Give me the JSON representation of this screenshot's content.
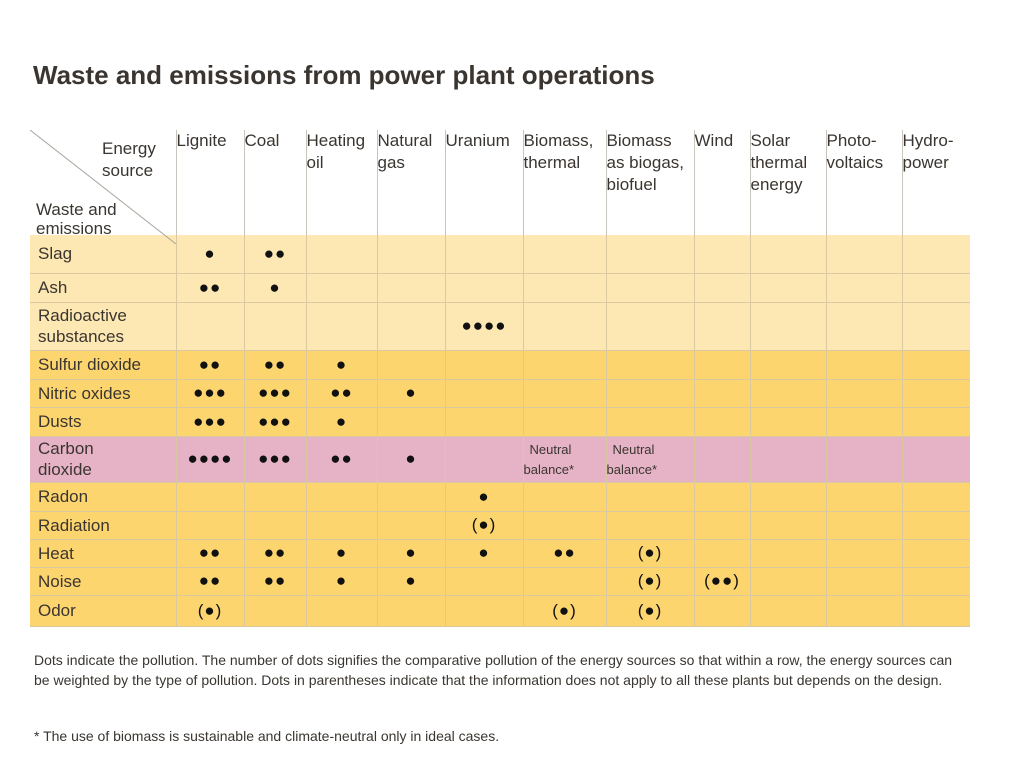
{
  "title": "Waste and emissions from power plant operations",
  "corner": {
    "energy_source": "Energy\nsource",
    "waste_and_emissions": "Waste and\nemissions"
  },
  "columns": [
    "Lignite",
    "Coal",
    "Heating\noil",
    "Natural\ngas",
    "Uranium",
    "Biomass,\nthermal",
    "Biomass\nas biogas,\nbiofuel",
    "Wind",
    "Solar\nthermal\nenergy",
    "Photo-\nvoltaics",
    "Hydro-\npower"
  ],
  "rows": [
    {
      "label": "Slag",
      "cells": [
        "●",
        "●●",
        "",
        "",
        "",
        "",
        "",
        "",
        "",
        "",
        ""
      ]
    },
    {
      "label": "Ash",
      "cells": [
        "●●",
        "●",
        "",
        "",
        "",
        "",
        "",
        "",
        "",
        "",
        ""
      ]
    },
    {
      "label": "Radioactive\nsubstances",
      "cells": [
        "",
        "",
        "",
        "",
        "●●●●",
        "",
        "",
        "",
        "",
        "",
        ""
      ]
    },
    {
      "label": "Sulfur dioxide",
      "cells": [
        "●●",
        "●●",
        "●",
        "",
        "",
        "",
        "",
        "",
        "",
        "",
        ""
      ]
    },
    {
      "label": "Nitric oxides",
      "cells": [
        "●●●",
        "●●●",
        "●●",
        "●",
        "",
        "",
        "",
        "",
        "",
        "",
        ""
      ]
    },
    {
      "label": "Dusts",
      "cells": [
        "●●●",
        "●●●",
        "●",
        "",
        "",
        "",
        "",
        "",
        "",
        "",
        ""
      ]
    },
    {
      "label": "Carbon\ndioxide",
      "cells": [
        "●●●●",
        "●●●",
        "●●",
        "●",
        "",
        "Neutral\nbalance*",
        "Neutral\nbalance*",
        "",
        "",
        "",
        ""
      ]
    },
    {
      "label": "Radon",
      "cells": [
        "",
        "",
        "",
        "",
        "●",
        "",
        "",
        "",
        "",
        "",
        ""
      ]
    },
    {
      "label": "Radiation",
      "cells": [
        "",
        "",
        "",
        "",
        "(●)",
        "",
        "",
        "",
        "",
        "",
        ""
      ]
    },
    {
      "label": "Heat",
      "cells": [
        "●●",
        "●●",
        "●",
        "●",
        "●",
        "●●",
        "(●)",
        "",
        "",
        "",
        ""
      ]
    },
    {
      "label": "Noise",
      "cells": [
        "●●",
        "●●",
        "●",
        "●",
        "",
        "",
        "(●)",
        "(●●)",
        "",
        "",
        ""
      ]
    },
    {
      "label": "Odor",
      "cells": [
        "(●)",
        "",
        "",
        "",
        "",
        "(●)",
        "(●)",
        "",
        "",
        "",
        ""
      ]
    }
  ],
  "footnote": "Dots indicate the pollution. The number of dots signifies the comparative pollution of the energy sources so that within a row, the energy sources can be weighted by the type of pollution. Dots in parentheses indicate that the information does not apply to all these plants but depends on the design.",
  "footnote_star": "* The use of biomass is sustainable and climate-neutral only in ideal cases.",
  "colors": {
    "band_light": "#fde7b2",
    "band_mid": "#fdd56f",
    "band_co2": "#e5b3c5"
  }
}
